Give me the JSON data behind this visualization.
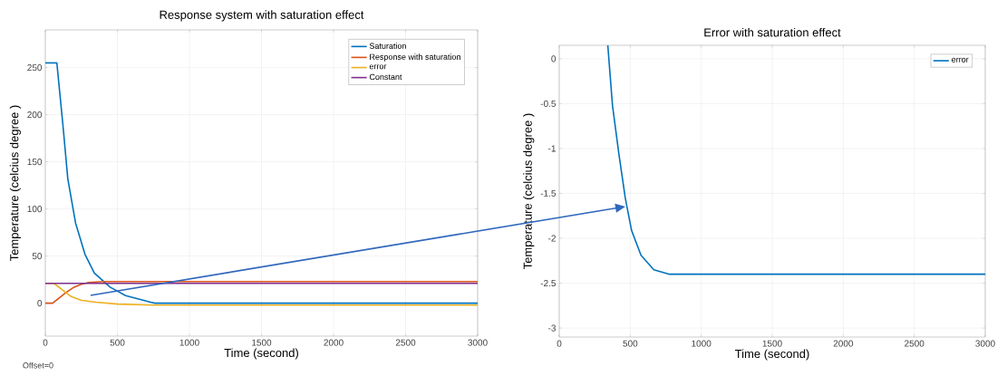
{
  "chart_data": [
    {
      "type": "line",
      "title": "Response system with saturation effect",
      "xlabel": "Time (second)",
      "ylabel": "Temperature (celcius degree )",
      "xlim": [
        0,
        3000
      ],
      "ylim": [
        -35,
        290
      ],
      "xticks": [
        0,
        500,
        1000,
        1500,
        2000,
        2500,
        3000
      ],
      "yticks": [
        0,
        50,
        100,
        150,
        200,
        250
      ],
      "grid": true,
      "legend": "top right",
      "annotations": [
        "Offset=0"
      ],
      "series": [
        {
          "name": "Saturation",
          "color": "#0072bd",
          "x": [
            0,
            80,
            124,
            156,
            210,
            275,
            340,
            449,
            557,
            730,
            760,
            3000
          ],
          "values": [
            255,
            255,
            186,
            132,
            85,
            52,
            32,
            17,
            8,
            1,
            0,
            0
          ]
        },
        {
          "name": "Response with saturation",
          "color": "#d95319",
          "x": [
            0,
            50,
            100,
            150,
            200,
            250,
            300,
            400,
            3000
          ],
          "values": [
            0,
            0,
            6,
            12,
            17,
            20,
            22,
            23,
            23
          ]
        },
        {
          "name": "error",
          "color": "#edb120",
          "x": [
            0,
            60,
            120,
            180,
            250,
            350,
            500,
            750,
            3000
          ],
          "values": [
            21,
            21,
            14,
            7,
            3,
            1,
            -1,
            -2,
            -2
          ]
        },
        {
          "name": "Constant",
          "color": "#7e2f8e",
          "x": [
            0,
            3000
          ],
          "values": [
            21,
            21
          ]
        }
      ]
    },
    {
      "type": "line",
      "title": "Error with saturation effect",
      "xlabel": "Time (second)",
      "ylabel": "Temperature (celcius degree )",
      "xlim": [
        0,
        3000
      ],
      "ylim": [
        -3.1,
        0.15
      ],
      "xticks": [
        0,
        500,
        1000,
        1500,
        2000,
        2500,
        3000
      ],
      "yticks": [
        -3,
        -2.5,
        -2,
        -1.5,
        -1,
        -0.5,
        0
      ],
      "grid": true,
      "legend": "top right",
      "series": [
        {
          "name": "error",
          "color": "#0072bd",
          "x": [
            342,
            375,
            420,
            465,
            509,
            576,
            666,
            777,
            3000
          ],
          "values": [
            0.15,
            -0.52,
            -1.06,
            -1.55,
            -1.91,
            -2.19,
            -2.35,
            -2.4,
            -2.4
          ]
        }
      ]
    }
  ]
}
